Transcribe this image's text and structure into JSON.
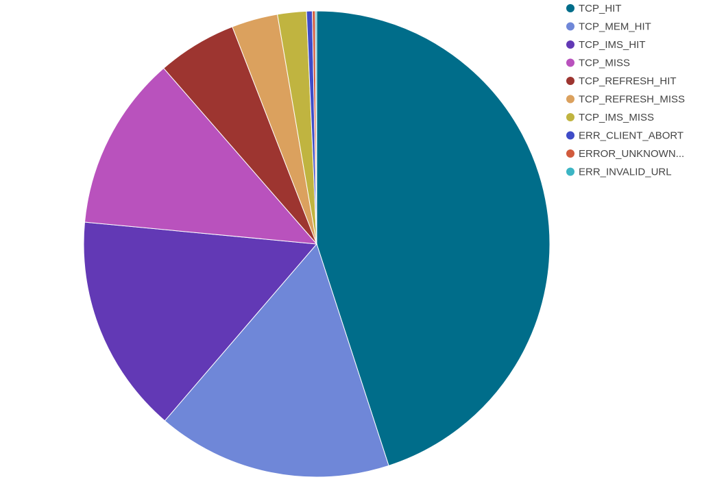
{
  "chart_data": {
    "type": "pie",
    "categories": [
      "TCP_HIT",
      "TCP_MEM_HIT",
      "TCP_IMS_HIT",
      "TCP_MISS",
      "TCP_REFRESH_HIT",
      "TCP_REFRESH_MISS",
      "TCP_IMS_MISS",
      "ERR_CLIENT_ABORT",
      "ERROR_UNKNOWN...",
      "ERR_INVALID_URL"
    ],
    "values": [
      45,
      16.3,
      15.2,
      12.1,
      5.5,
      3.2,
      2.0,
      0.4,
      0.2,
      0.1
    ],
    "colors": [
      "#006d8a",
      "#6f87d8",
      "#6239b5",
      "#b952bd",
      "#9d3530",
      "#dba15e",
      "#c0b440",
      "#3f4cc8",
      "#d15b3d",
      "#3cb5c4"
    ],
    "legend": "top-right"
  }
}
